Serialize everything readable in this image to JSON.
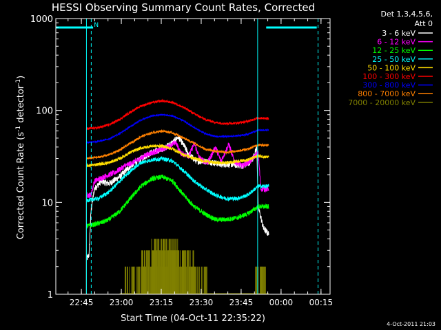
{
  "window": {
    "background": "#000000"
  },
  "chart_data": {
    "type": "line",
    "title": "HESSI Observing Summary Count Rates, Corrected",
    "xlabel": "Start Time (04-Oct-11 22:35:22)",
    "ylabel": "Corrected Count Rate (s⁻¹ detector⁻¹)",
    "ylabel_parts": {
      "main": "Corrected Count Rate (s",
      "sup1": "-1",
      "mid": " detector",
      "sup2": "-1",
      "end": ")"
    },
    "footer": "4-Oct-2011 21:03",
    "x_unit": "minutes after 22:35:22",
    "xlim": [
      0,
      103
    ],
    "y_scale": "log",
    "ylim": [
      1,
      1000
    ],
    "x_ticks": [
      {
        "label": "22:45",
        "value": 9.6
      },
      {
        "label": "23:00",
        "value": 24.6
      },
      {
        "label": "23:15",
        "value": 39.6
      },
      {
        "label": "23:30",
        "value": 54.6
      },
      {
        "label": "23:45",
        "value": 69.6
      },
      {
        "label": "00:00",
        "value": 84.6
      },
      {
        "label": "00:15",
        "value": 99.6
      }
    ],
    "y_ticks": [
      {
        "label": "1",
        "value": 1
      },
      {
        "label": "10",
        "value": 10
      },
      {
        "label": "100",
        "value": 100
      },
      {
        "label": "1000",
        "value": 1000
      }
    ],
    "legend": {
      "position": "right",
      "header_lines": [
        "Det 1,3,4,5,6,",
        "Att 0"
      ]
    },
    "flag_annotation": "N",
    "series": [
      {
        "name": "3 - 6 keV",
        "color": "#ffffff",
        "noise": 0.08,
        "points": [
          [
            11.5,
            2.4
          ],
          [
            12.5,
            2.7
          ],
          [
            13.2,
            8
          ],
          [
            14.5,
            14
          ],
          [
            17,
            17
          ],
          [
            20,
            16
          ],
          [
            24,
            19
          ],
          [
            28,
            25
          ],
          [
            32,
            30
          ],
          [
            36,
            35
          ],
          [
            40,
            38
          ],
          [
            44,
            45
          ],
          [
            46,
            52
          ],
          [
            48,
            42
          ],
          [
            50,
            33
          ],
          [
            53,
            28
          ],
          [
            57,
            28
          ],
          [
            62,
            26
          ],
          [
            66,
            26
          ],
          [
            70,
            25
          ],
          [
            72,
            26
          ],
          [
            74,
            30
          ],
          [
            75.5,
            40
          ],
          [
            76,
            9
          ],
          [
            78,
            5.2
          ],
          [
            80,
            4.5
          ]
        ]
      },
      {
        "name": "6 - 12 keV",
        "color": "#ff00ff",
        "noise": 0.07,
        "points": [
          [
            11.5,
            12
          ],
          [
            13.2,
            12
          ],
          [
            14.5,
            17
          ],
          [
            18,
            19
          ],
          [
            22,
            21
          ],
          [
            26,
            25
          ],
          [
            30,
            28
          ],
          [
            34,
            33
          ],
          [
            38,
            36
          ],
          [
            42,
            40
          ],
          [
            45,
            45
          ],
          [
            47,
            34
          ],
          [
            50,
            32
          ],
          [
            52,
            44
          ],
          [
            54,
            30
          ],
          [
            57,
            27
          ],
          [
            60,
            40
          ],
          [
            62,
            28
          ],
          [
            65,
            43
          ],
          [
            67,
            28
          ],
          [
            70,
            25
          ],
          [
            73,
            28
          ],
          [
            76,
            35
          ],
          [
            77,
            14
          ],
          [
            80,
            14
          ]
        ]
      },
      {
        "name": "12 - 25 keV",
        "color": "#00ff00",
        "noise": 0.06,
        "points": [
          [
            11.5,
            5.5
          ],
          [
            17,
            6
          ],
          [
            20,
            6.5
          ],
          [
            24,
            8
          ],
          [
            28,
            11
          ],
          [
            32,
            15
          ],
          [
            36,
            18
          ],
          [
            40,
            19
          ],
          [
            44,
            17
          ],
          [
            48,
            12
          ],
          [
            52,
            9
          ],
          [
            56,
            7.5
          ],
          [
            60,
            6.5
          ],
          [
            64,
            6.5
          ],
          [
            68,
            6.8
          ],
          [
            72,
            7.5
          ],
          [
            76,
            9
          ],
          [
            80,
            9
          ]
        ]
      },
      {
        "name": "25 - 50 keV",
        "color": "#00ffff",
        "noise": 0.05,
        "points": [
          [
            11.5,
            10.5
          ],
          [
            16,
            11
          ],
          [
            20,
            13
          ],
          [
            24,
            17
          ],
          [
            28,
            22
          ],
          [
            32,
            27
          ],
          [
            36,
            29
          ],
          [
            40,
            30
          ],
          [
            44,
            28
          ],
          [
            48,
            22
          ],
          [
            52,
            17
          ],
          [
            56,
            14
          ],
          [
            60,
            12
          ],
          [
            64,
            11
          ],
          [
            68,
            11
          ],
          [
            72,
            12
          ],
          [
            76,
            15
          ],
          [
            80,
            15
          ]
        ]
      },
      {
        "name": "50 - 100 keV",
        "color": "#ffdd00",
        "noise": 0.04,
        "points": [
          [
            11.5,
            25
          ],
          [
            16,
            26
          ],
          [
            20,
            27
          ],
          [
            24,
            30
          ],
          [
            28,
            35
          ],
          [
            32,
            39
          ],
          [
            36,
            41
          ],
          [
            40,
            41
          ],
          [
            44,
            38
          ],
          [
            48,
            33
          ],
          [
            52,
            30
          ],
          [
            56,
            28
          ],
          [
            60,
            27
          ],
          [
            64,
            27
          ],
          [
            68,
            28
          ],
          [
            72,
            29
          ],
          [
            76,
            32
          ],
          [
            80,
            31
          ]
        ]
      },
      {
        "name": "100 - 300 keV",
        "color": "#ff0000",
        "noise": 0.03,
        "points": [
          [
            11.5,
            63
          ],
          [
            16,
            65
          ],
          [
            20,
            70
          ],
          [
            24,
            80
          ],
          [
            28,
            96
          ],
          [
            32,
            112
          ],
          [
            36,
            122
          ],
          [
            40,
            127
          ],
          [
            44,
            122
          ],
          [
            48,
            108
          ],
          [
            52,
            92
          ],
          [
            56,
            80
          ],
          [
            60,
            74
          ],
          [
            64,
            72
          ],
          [
            68,
            73
          ],
          [
            72,
            76
          ],
          [
            76,
            83
          ],
          [
            80,
            82
          ]
        ]
      },
      {
        "name": "300 - 800 keV",
        "color": "#0000ff",
        "noise": 0.02,
        "points": [
          [
            11.5,
            45
          ],
          [
            16,
            46
          ],
          [
            20,
            49
          ],
          [
            24,
            56
          ],
          [
            28,
            67
          ],
          [
            32,
            79
          ],
          [
            36,
            87
          ],
          [
            40,
            90
          ],
          [
            44,
            87
          ],
          [
            48,
            77
          ],
          [
            52,
            65
          ],
          [
            56,
            56
          ],
          [
            60,
            52
          ],
          [
            64,
            52
          ],
          [
            68,
            53
          ],
          [
            72,
            55
          ],
          [
            76,
            61
          ],
          [
            80,
            61
          ]
        ]
      },
      {
        "name": "800 - 7000 keV",
        "color": "#ff8000",
        "noise": 0.03,
        "points": [
          [
            11.5,
            30
          ],
          [
            16,
            31
          ],
          [
            20,
            33
          ],
          [
            24,
            37
          ],
          [
            28,
            44
          ],
          [
            32,
            52
          ],
          [
            36,
            57
          ],
          [
            40,
            60
          ],
          [
            44,
            57
          ],
          [
            48,
            50
          ],
          [
            52,
            44
          ],
          [
            56,
            38
          ],
          [
            60,
            36
          ],
          [
            64,
            35
          ],
          [
            68,
            36
          ],
          [
            72,
            38
          ],
          [
            76,
            42
          ],
          [
            80,
            42
          ]
        ]
      },
      {
        "name": "7000 - 20000 keV",
        "color": "#808000",
        "noise": 0,
        "points": []
      }
    ],
    "flags": {
      "bar_value": 800,
      "bar_segments": [
        [
          0,
          14
        ],
        [
          79,
          98
        ]
      ],
      "solid_lines": [
        11.5,
        75.8
      ],
      "dashed_lines": [
        13.3,
        98.5
      ]
    },
    "olive_steps": [
      1,
      2,
      3,
      4
    ]
  }
}
